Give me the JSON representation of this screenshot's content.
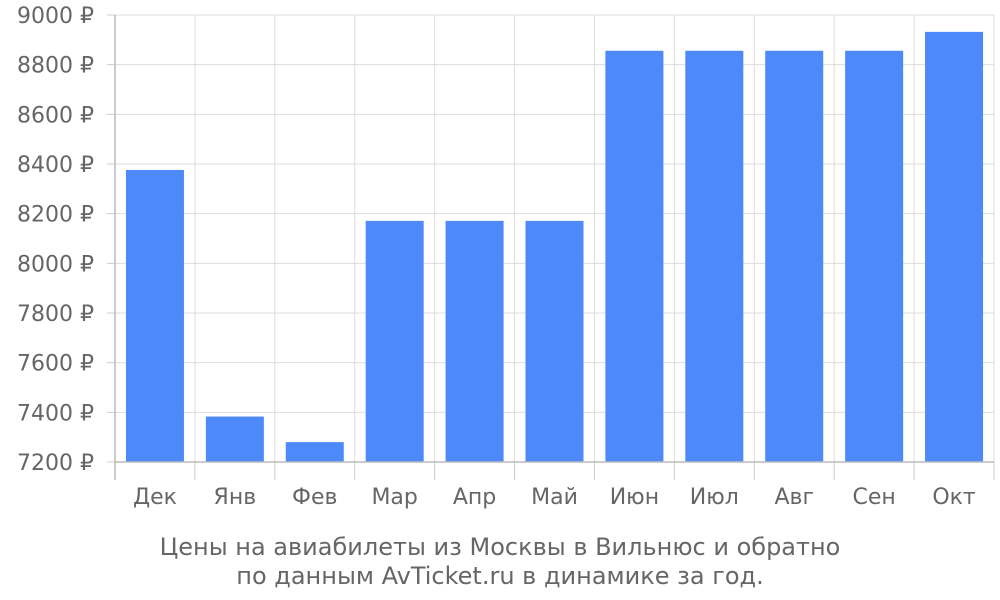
{
  "chart_data": {
    "type": "bar",
    "categories": [
      "Дек",
      "Янв",
      "Фев",
      "Мар",
      "Апр",
      "Май",
      "Июн",
      "Июл",
      "Авг",
      "Сен",
      "Окт"
    ],
    "values": [
      8376,
      7383,
      7280,
      8171,
      8171,
      8171,
      8856,
      8856,
      8856,
      8856,
      8932
    ],
    "ylim": [
      7200,
      9000
    ],
    "yticks": [
      7200,
      7400,
      7600,
      7800,
      8000,
      8200,
      8400,
      8600,
      8800,
      9000
    ],
    "y_unit_suffix": " ₽",
    "grid": true,
    "legend": "none",
    "title": "Цены на авиабилеты из Москвы в Вильнюс и обратно",
    "subtitle": "по данным AvTicket.ru в динамике за год.",
    "bar_color": "#4d89f9",
    "grid_color": "#dddddd",
    "text_color": "#666666"
  }
}
